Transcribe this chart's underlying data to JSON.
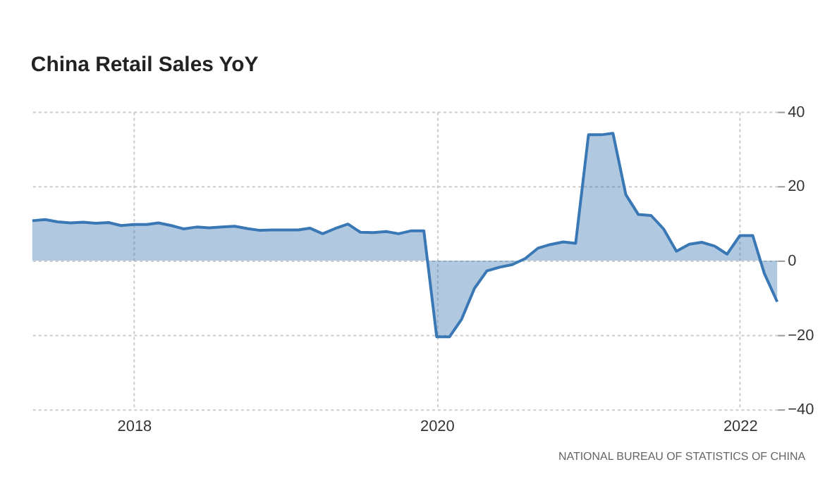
{
  "chart_data": {
    "type": "area",
    "title": "China Retail Sales YoY",
    "x": [
      "2017-05",
      "2017-06",
      "2017-07",
      "2017-08",
      "2017-09",
      "2017-10",
      "2017-11",
      "2017-12",
      "2018-01",
      "2018-02",
      "2018-03",
      "2018-04",
      "2018-05",
      "2018-06",
      "2018-07",
      "2018-08",
      "2018-09",
      "2018-10",
      "2018-11",
      "2018-12",
      "2019-01",
      "2019-02",
      "2019-03",
      "2019-04",
      "2019-05",
      "2019-06",
      "2019-07",
      "2019-08",
      "2019-09",
      "2019-10",
      "2019-11",
      "2019-12",
      "2020-01",
      "2020-02",
      "2020-03",
      "2020-04",
      "2020-05",
      "2020-06",
      "2020-07",
      "2020-08",
      "2020-09",
      "2020-10",
      "2020-11",
      "2020-12",
      "2021-01",
      "2021-02",
      "2021-03",
      "2021-04",
      "2021-05",
      "2021-06",
      "2021-07",
      "2021-08",
      "2021-09",
      "2021-10",
      "2021-11",
      "2021-12",
      "2022-01",
      "2022-02",
      "2022-03",
      "2022-04"
    ],
    "series": [
      {
        "color": "#3a78b5",
        "values": [
          10.7,
          11.0,
          10.4,
          10.1,
          10.3,
          10.0,
          10.2,
          9.4,
          9.7,
          9.7,
          10.1,
          9.4,
          8.5,
          9.0,
          8.8,
          9.0,
          9.2,
          8.6,
          8.1,
          8.2,
          8.2,
          8.2,
          8.7,
          7.2,
          8.6,
          9.8,
          7.6,
          7.5,
          7.8,
          7.2,
          8.0,
          8.0,
          -20.5,
          -20.5,
          -15.8,
          -7.5,
          -2.8,
          -1.8,
          -1.1,
          0.5,
          3.3,
          4.3,
          5.0,
          4.6,
          33.8,
          33.8,
          34.2,
          17.7,
          12.4,
          12.1,
          8.5,
          2.5,
          4.4,
          4.9,
          3.9,
          1.7,
          6.7,
          6.7,
          -3.5,
          -11.1
        ]
      }
    ],
    "xlim": [
      "2017-05",
      "2022-04"
    ],
    "xticks": [
      "2018",
      "2020",
      "2022"
    ],
    "ylim": [
      -40,
      40
    ],
    "yticks": [
      -40,
      -20,
      0,
      20,
      40
    ],
    "grid": true,
    "annotations": [
      "NATIONAL BUREAU OF STATISTICS OF CHINA"
    ]
  }
}
